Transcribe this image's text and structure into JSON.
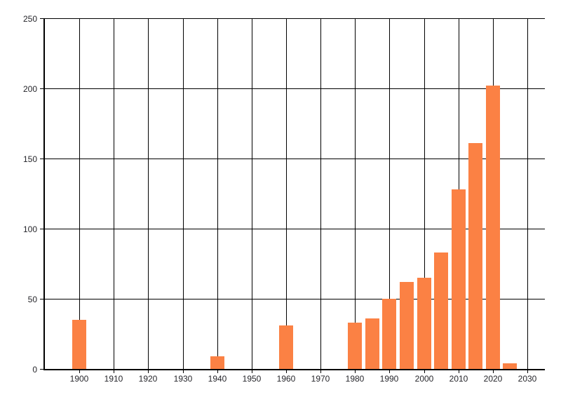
{
  "chart_data": {
    "type": "bar",
    "title": "",
    "xlabel": "",
    "ylabel": "",
    "x": [
      1900,
      1940,
      1960,
      1980,
      1985,
      1990,
      1995,
      2000,
      2005,
      2010,
      2015,
      2020,
      2025
    ],
    "values": [
      35,
      9,
      31,
      33,
      36,
      50,
      62,
      65,
      83,
      128,
      161,
      202,
      4
    ],
    "x_ticks": [
      1900,
      1910,
      1920,
      1930,
      1940,
      1950,
      1960,
      1970,
      1980,
      1990,
      2000,
      2010,
      2020,
      2030
    ],
    "y_ticks": [
      0,
      50,
      100,
      150,
      200,
      250
    ],
    "xlim": [
      1889.6,
      2035.1
    ],
    "ylim": [
      0,
      250
    ],
    "bar_width_years": 4,
    "grid": true,
    "legend": false,
    "colors": {
      "bar": "#fb8144",
      "grid": "#000000",
      "axis": "#000000",
      "text": "#26262b",
      "background": "#ffffff"
    }
  }
}
